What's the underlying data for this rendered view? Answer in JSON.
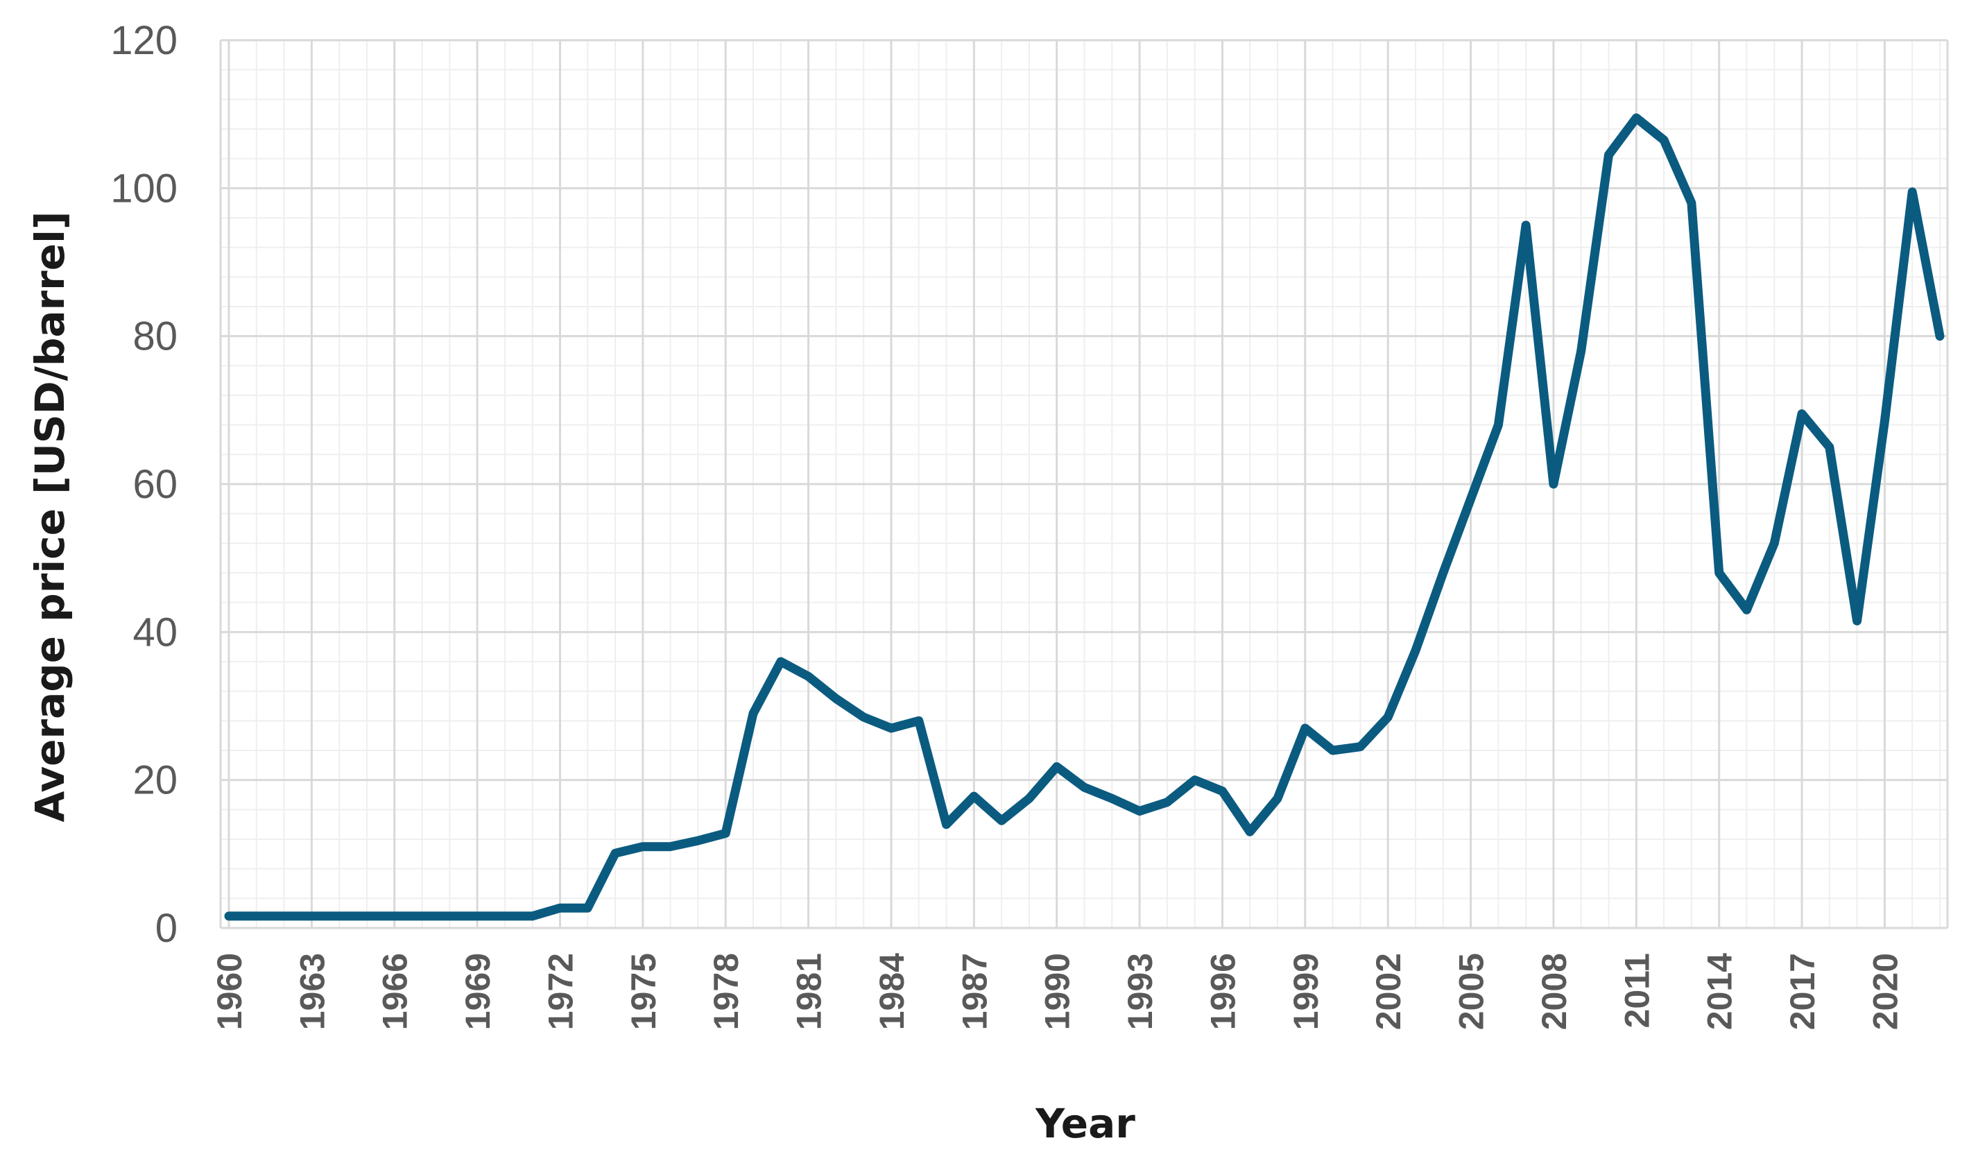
{
  "chart_data": {
    "type": "line",
    "title": "",
    "xlabel": "Year",
    "ylabel": "Average price [USD/barrel]",
    "ylim": [
      0,
      120
    ],
    "xlim": [
      1960,
      2022
    ],
    "yticks": [
      0,
      20,
      40,
      60,
      80,
      100,
      120
    ],
    "xticks": [
      1960,
      1963,
      1966,
      1969,
      1972,
      1975,
      1978,
      1981,
      1984,
      1987,
      1990,
      1993,
      1996,
      1999,
      2002,
      2005,
      2008,
      2011,
      2014,
      2017,
      2020
    ],
    "grid": true,
    "legend": "none",
    "line_color": "#0b5b80",
    "series": [
      {
        "x": [
          1960,
          1961,
          1962,
          1963,
          1964,
          1965,
          1966,
          1967,
          1968,
          1969,
          1970,
          1971,
          1972,
          1973,
          1974,
          1975,
          1976,
          1977,
          1978,
          1979,
          1980,
          1981,
          1982,
          1983,
          1984,
          1985,
          1986,
          1987,
          1988,
          1989,
          1990,
          1991,
          1992,
          1993,
          1994,
          1995,
          1996,
          1997,
          1998,
          1999,
          2000,
          2001,
          2002,
          2003,
          2004,
          2005,
          2006,
          2007,
          2008,
          2009,
          2010,
          2011,
          2012,
          2013,
          2014,
          2015,
          2016,
          2017,
          2018,
          2019,
          2020,
          2021,
          2022
        ],
        "values": [
          1.6,
          1.6,
          1.6,
          1.6,
          1.6,
          1.6,
          1.6,
          1.6,
          1.6,
          1.6,
          1.6,
          1.6,
          2.7,
          2.7,
          10.1,
          11.0,
          11.0,
          11.8,
          12.8,
          29.0,
          36.0,
          34.0,
          31.0,
          28.5,
          27.0,
          28.0,
          14.0,
          17.8,
          14.5,
          17.5,
          21.8,
          19.0,
          17.5,
          15.8,
          17.0,
          20.0,
          18.5,
          13.0,
          17.5,
          27.0,
          24.0,
          24.5,
          28.5,
          37.5,
          48.0,
          58.0,
          68.0,
          95.0,
          60.0,
          78.0,
          104.5,
          109.5,
          106.5,
          98.0,
          48.0,
          43.0,
          52.0,
          69.5,
          65.0,
          41.5,
          68.5,
          99.5,
          80.0
        ]
      }
    ]
  }
}
